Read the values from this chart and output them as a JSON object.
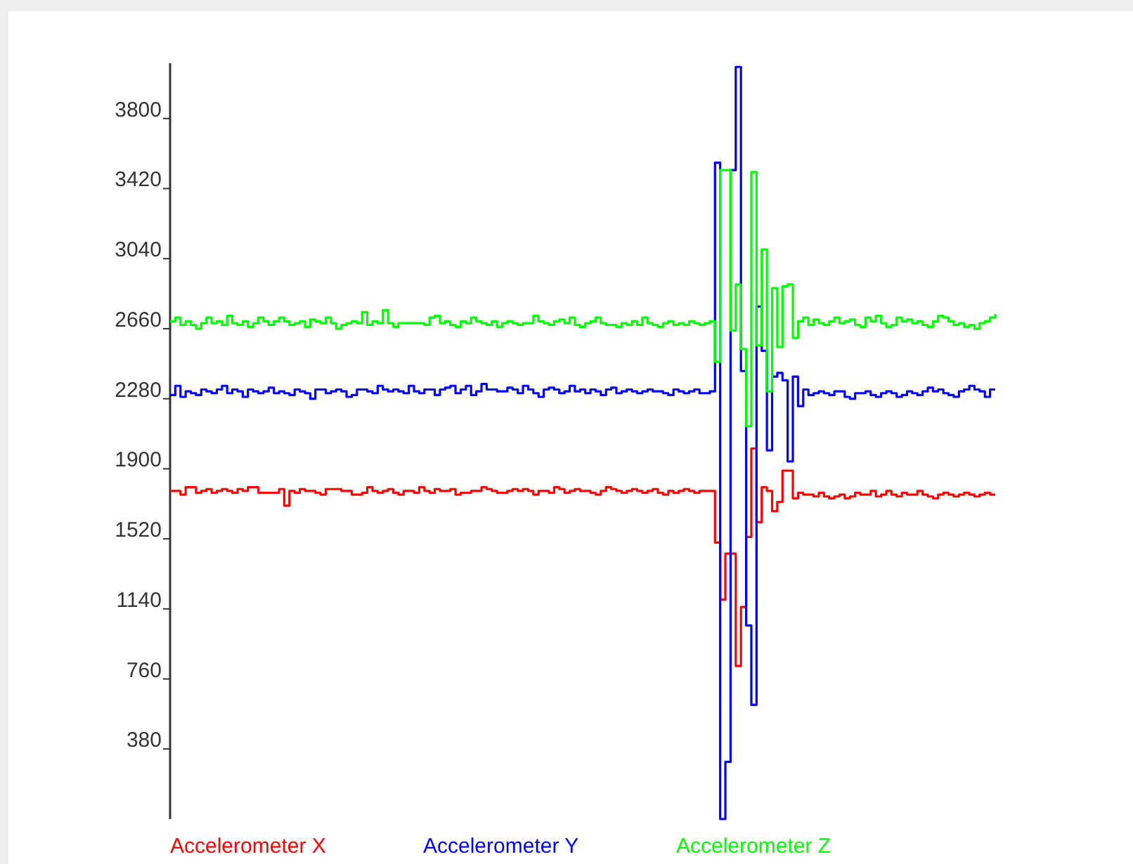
{
  "chart_data": {
    "type": "step",
    "categories": [
      null,
      null,
      null,
      null,
      null,
      null,
      null,
      null,
      null,
      null,
      null,
      null,
      null,
      null,
      null,
      null,
      null,
      null,
      null,
      null,
      null,
      null,
      null,
      null,
      null,
      null,
      null,
      null,
      null,
      null,
      null,
      null,
      null,
      null,
      null,
      null,
      null,
      null,
      null,
      null,
      null,
      null,
      null,
      null,
      null,
      null,
      null,
      null,
      null,
      null,
      null,
      null,
      null,
      null,
      null,
      null,
      null,
      null,
      null,
      null,
      null,
      null,
      null,
      null,
      null,
      null,
      null,
      null,
      null,
      null,
      null,
      null,
      null,
      null,
      null,
      null,
      null,
      null,
      null,
      null,
      null,
      null,
      null,
      null,
      null,
      null,
      null,
      null,
      null,
      null,
      null,
      null,
      null,
      null,
      null,
      null,
      null,
      null,
      null,
      null,
      null,
      null,
      null,
      null,
      null,
      null,
      null,
      null,
      null,
      null,
      null,
      null,
      null,
      null,
      null,
      null,
      null,
      null,
      null,
      null,
      null,
      null,
      null,
      null,
      null,
      null,
      null,
      null,
      null,
      null,
      null,
      null,
      null,
      null,
      null,
      null,
      null,
      null,
      null,
      null,
      null,
      null,
      null,
      null,
      null,
      null,
      null,
      null,
      null,
      null,
      null,
      null,
      null,
      null,
      null,
      null,
      null,
      null,
      null,
      null
    ],
    "ylim": [
      0,
      4100
    ],
    "yticks": [
      380,
      760,
      1140,
      1520,
      1900,
      2280,
      2660,
      3040,
      3420,
      3800
    ],
    "tick_labels": "y",
    "grid": false,
    "legend": "bottom",
    "marker": "none",
    "line_style": "solid",
    "series": [
      {
        "name": "Accelerometer X",
        "color": "#ff0000",
        "values": [
          1780,
          1780,
          1760,
          1800,
          1800,
          1770,
          1780,
          1790,
          1770,
          1780,
          1790,
          1780,
          1770,
          1790,
          1780,
          1800,
          1800,
          1770,
          1770,
          1770,
          1770,
          1790,
          1700,
          1780,
          1770,
          1790,
          1780,
          1780,
          1770,
          1760,
          1790,
          1790,
          1790,
          1780,
          1780,
          1760,
          1760,
          1770,
          1800,
          1780,
          1770,
          1780,
          1790,
          1770,
          1760,
          1780,
          1780,
          1770,
          1800,
          1780,
          1770,
          1790,
          1780,
          1780,
          1790,
          1760,
          1770,
          1770,
          1780,
          1780,
          1800,
          1790,
          1780,
          1770,
          1770,
          1780,
          1790,
          1780,
          1790,
          1780,
          1760,
          1780,
          1780,
          1770,
          1800,
          1790,
          1770,
          1780,
          1790,
          1780,
          1780,
          1770,
          1760,
          1780,
          1800,
          1790,
          1780,
          1770,
          1780,
          1790,
          1780,
          1770,
          1780,
          1790,
          1770,
          1760,
          1780,
          1770,
          1780,
          1790,
          1780,
          1770,
          1780,
          1780,
          1780,
          1500,
          1190,
          1440,
          1440,
          830,
          1150,
          1530,
          2010,
          1610,
          1800,
          1780,
          1670,
          1720,
          1890,
          1890,
          1740,
          1770,
          1760,
          1760,
          1750,
          1770,
          1750,
          1740,
          1750,
          1760,
          1740,
          1750,
          1770,
          1760,
          1760,
          1780,
          1750,
          1760,
          1780,
          1760,
          1750,
          1770,
          1760,
          1760,
          1780,
          1760,
          1750,
          1740,
          1760,
          1770,
          1760,
          1750,
          1760,
          1770,
          1760,
          1750,
          1760,
          1770,
          1760,
          1760
        ]
      },
      {
        "name": "Accelerometer Y",
        "color": "#0000ff",
        "values": [
          2300,
          2350,
          2290,
          2320,
          2310,
          2300,
          2330,
          2320,
          2310,
          2330,
          2350,
          2310,
          2330,
          2320,
          2290,
          2330,
          2320,
          2310,
          2320,
          2340,
          2310,
          2320,
          2310,
          2300,
          2330,
          2320,
          2310,
          2280,
          2330,
          2330,
          2310,
          2320,
          2330,
          2320,
          2290,
          2300,
          2330,
          2330,
          2320,
          2310,
          2350,
          2330,
          2320,
          2330,
          2320,
          2310,
          2350,
          2320,
          2310,
          2330,
          2330,
          2300,
          2330,
          2340,
          2350,
          2310,
          2330,
          2350,
          2300,
          2320,
          2360,
          2330,
          2330,
          2320,
          2320,
          2340,
          2330,
          2310,
          2350,
          2330,
          2310,
          2290,
          2330,
          2340,
          2330,
          2310,
          2320,
          2350,
          2320,
          2330,
          2310,
          2330,
          2320,
          2300,
          2330,
          2340,
          2310,
          2320,
          2330,
          2320,
          2310,
          2320,
          2330,
          2320,
          2320,
          2310,
          2300,
          2330,
          2320,
          2310,
          2320,
          2330,
          2310,
          2310,
          2320,
          3560,
          0,
          310,
          3520,
          4080,
          2430,
          1050,
          620,
          2780,
          2540,
          2000,
          2400,
          2420,
          2380,
          1940,
          2400,
          2240,
          2330,
          2300,
          2310,
          2320,
          2310,
          2300,
          2320,
          2320,
          2290,
          2280,
          2310,
          2310,
          2320,
          2300,
          2290,
          2310,
          2320,
          2310,
          2290,
          2300,
          2320,
          2310,
          2300,
          2320,
          2340,
          2320,
          2330,
          2310,
          2300,
          2290,
          2320,
          2330,
          2350,
          2330,
          2320,
          2290,
          2330,
          2330
        ]
      },
      {
        "name": "Accelerometer Z",
        "color": "#00ff00",
        "values": [
          2700,
          2720,
          2680,
          2700,
          2680,
          2660,
          2690,
          2720,
          2690,
          2700,
          2680,
          2730,
          2690,
          2680,
          2700,
          2670,
          2690,
          2720,
          2700,
          2680,
          2700,
          2720,
          2700,
          2680,
          2690,
          2700,
          2670,
          2710,
          2700,
          2690,
          2720,
          2690,
          2660,
          2680,
          2690,
          2700,
          2690,
          2750,
          2680,
          2700,
          2690,
          2760,
          2690,
          2670,
          2690,
          2690,
          2690,
          2690,
          2690,
          2680,
          2720,
          2730,
          2690,
          2700,
          2680,
          2670,
          2700,
          2690,
          2720,
          2700,
          2690,
          2680,
          2700,
          2670,
          2690,
          2700,
          2690,
          2680,
          2690,
          2690,
          2730,
          2700,
          2690,
          2680,
          2700,
          2710,
          2690,
          2720,
          2680,
          2670,
          2690,
          2700,
          2720,
          2690,
          2680,
          2680,
          2670,
          2690,
          2680,
          2700,
          2680,
          2720,
          2690,
          2680,
          2670,
          2690,
          2700,
          2680,
          2690,
          2680,
          2700,
          2690,
          2680,
          2690,
          2700,
          2480,
          3520,
          3520,
          2650,
          2900,
          2550,
          2130,
          3510,
          2570,
          3090,
          2320,
          2880,
          2560,
          2890,
          2900,
          2610,
          2700,
          2720,
          2680,
          2710,
          2690,
          2680,
          2700,
          2720,
          2690,
          2700,
          2710,
          2680,
          2670,
          2720,
          2700,
          2730,
          2690,
          2670,
          2680,
          2720,
          2700,
          2710,
          2690,
          2700,
          2680,
          2670,
          2700,
          2730,
          2720,
          2700,
          2680,
          2690,
          2670,
          2680,
          2660,
          2690,
          2700,
          2720,
          2740
        ]
      }
    ]
  }
}
